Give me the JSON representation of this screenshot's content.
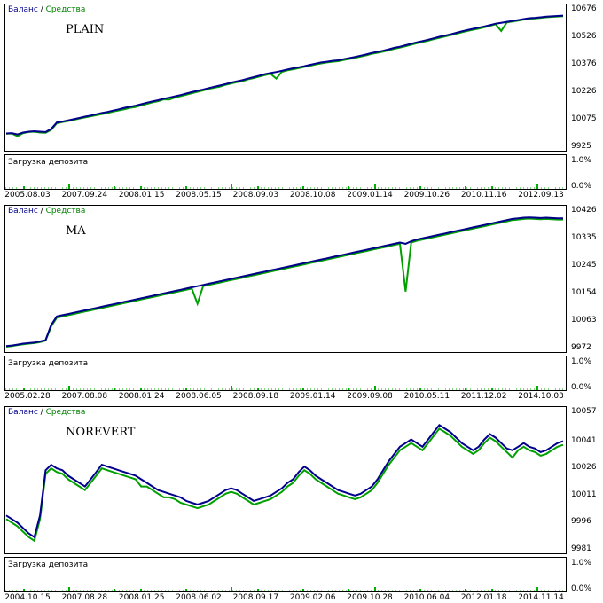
{
  "legend": {
    "balance": "Баланс",
    "separator": " / ",
    "equity": "Средства"
  },
  "colors": {
    "balance": "#00008b",
    "equity": "#00a000",
    "load": "#00b000",
    "axis": "#000000"
  },
  "load_panel": {
    "label": "Загрузка депозита",
    "ticks": [
      "1.0%",
      "0.0%"
    ]
  },
  "chart_data": [
    {
      "type": "line",
      "tag": "PLAIN",
      "ylim": [
        9925,
        10676
      ],
      "yticks": [
        "10676",
        "10526",
        "10376",
        "10226",
        "10075",
        "9925"
      ],
      "xticks": [
        "2005.08.03",
        "2007.09.24",
        "2008.01.15",
        "2008.05.15",
        "2008.09.03",
        "2008.10.08",
        "2009.01.14",
        "2009.10.26",
        "2010.11.16",
        "2012.09.13"
      ],
      "series": [
        {
          "name": "Баланс",
          "values": [
            10000,
            10002,
            9995,
            10005,
            10010,
            10012,
            10010,
            10008,
            10025,
            10060,
            10065,
            10072,
            10078,
            10085,
            10092,
            10098,
            10105,
            10112,
            10118,
            10125,
            10132,
            10140,
            10146,
            10152,
            10160,
            10168,
            10175,
            10182,
            10190,
            10196,
            10203,
            10210,
            10218,
            10226,
            10233,
            10240,
            10248,
            10255,
            10262,
            10270,
            10278,
            10285,
            10292,
            10300,
            10308,
            10316,
            10324,
            10330,
            10336,
            10342,
            10350,
            10356,
            10362,
            10368,
            10375,
            10382,
            10388,
            10392,
            10397,
            10400,
            10406,
            10412,
            10418,
            10425,
            10432,
            10440,
            10446,
            10452,
            10460,
            10468,
            10474,
            10482,
            10490,
            10498,
            10505,
            10512,
            10520,
            10528,
            10535,
            10542,
            10550,
            10558,
            10565,
            10572,
            10578,
            10585,
            10592,
            10600,
            10605,
            10610,
            10615,
            10620,
            10625,
            10630,
            10632,
            10635,
            10638,
            10640,
            10642,
            10644
          ]
        },
        {
          "name": "Средства",
          "values": [
            9998,
            10000,
            9985,
            10002,
            10008,
            10010,
            10005,
            10004,
            10020,
            10056,
            10062,
            10068,
            10074,
            10082,
            10088,
            10094,
            10100,
            10106,
            10112,
            10120,
            10126,
            10132,
            10140,
            10145,
            10154,
            10162,
            10170,
            10176,
            10186,
            10185,
            10197,
            10204,
            10212,
            10220,
            10228,
            10235,
            10244,
            10250,
            10256,
            10266,
            10273,
            10280,
            10286,
            10296,
            10303,
            10311,
            10319,
            10326,
            10300,
            10337,
            10345,
            10351,
            10357,
            10364,
            10370,
            10377,
            10383,
            10388,
            10392,
            10395,
            10402,
            10407,
            10413,
            10420,
            10427,
            10435,
            10441,
            10447,
            10455,
            10463,
            10469,
            10477,
            10485,
            10493,
            10500,
            10507,
            10515,
            10523,
            10530,
            10537,
            10545,
            10553,
            10560,
            10567,
            10573,
            10580,
            10588,
            10597,
            10560,
            10607,
            10612,
            10617,
            10622,
            10627,
            10629,
            10632,
            10635,
            10637,
            10639,
            10641
          ]
        }
      ]
    },
    {
      "type": "line",
      "tag": "MA",
      "ylim": [
        9972,
        10426
      ],
      "yticks": [
        "10426",
        "10335",
        "10245",
        "10154",
        "10063",
        "9972"
      ],
      "xticks": [
        "2005.02.28",
        "2007.08.08",
        "2008.01.24",
        "2008.06.05",
        "2008.09.18",
        "2009.01.14",
        "2009.09.08",
        "2010.05.11",
        "2011.12.02",
        "2014.10.03"
      ],
      "series": [
        {
          "name": "Баланс",
          "values": [
            9980,
            9982,
            9985,
            9988,
            9990,
            9992,
            9995,
            10000,
            10050,
            10078,
            10082,
            10086,
            10090,
            10094,
            10098,
            10102,
            10106,
            10110,
            10114,
            10118,
            10122,
            10126,
            10130,
            10134,
            10138,
            10142,
            10146,
            10150,
            10154,
            10158,
            10162,
            10166,
            10170,
            10174,
            10178,
            10182,
            10186,
            10190,
            10194,
            10198,
            10202,
            10206,
            10210,
            10214,
            10218,
            10222,
            10226,
            10230,
            10234,
            10238,
            10242,
            10246,
            10250,
            10254,
            10258,
            10262,
            10266,
            10270,
            10274,
            10278,
            10282,
            10286,
            10290,
            10294,
            10298,
            10302,
            10306,
            10310,
            10314,
            10318,
            10322,
            10318,
            10326,
            10332,
            10336,
            10340,
            10344,
            10348,
            10352,
            10356,
            10360,
            10364,
            10368,
            10372,
            10376,
            10380,
            10384,
            10388,
            10392,
            10396,
            10400,
            10402,
            10404,
            10405,
            10404,
            10403,
            10404,
            10403,
            10402,
            10402
          ]
        },
        {
          "name": "Средства",
          "values": [
            9978,
            9980,
            9983,
            9986,
            9988,
            9990,
            9993,
            9998,
            10045,
            10074,
            10078,
            10082,
            10086,
            10090,
            10094,
            10098,
            10102,
            10106,
            10110,
            10114,
            10118,
            10122,
            10126,
            10130,
            10134,
            10138,
            10142,
            10146,
            10150,
            10154,
            10158,
            10162,
            10166,
            10170,
            10120,
            10178,
            10182,
            10186,
            10190,
            10194,
            10198,
            10202,
            10206,
            10210,
            10214,
            10218,
            10222,
            10226,
            10230,
            10234,
            10238,
            10242,
            10246,
            10250,
            10254,
            10258,
            10262,
            10266,
            10270,
            10274,
            10278,
            10282,
            10286,
            10290,
            10294,
            10298,
            10302,
            10306,
            10310,
            10314,
            10318,
            10160,
            10322,
            10328,
            10332,
            10336,
            10340,
            10344,
            10348,
            10352,
            10356,
            10360,
            10364,
            10368,
            10372,
            10376,
            10380,
            10384,
            10388,
            10392,
            10396,
            10398,
            10400,
            10401,
            10400,
            10399,
            10400,
            10399,
            10398,
            10398
          ]
        }
      ]
    },
    {
      "type": "line",
      "tag": "NOREVERT",
      "ylim": [
        9981,
        10057
      ],
      "yticks": [
        "10057",
        "10041",
        "10026",
        "10011",
        "9996",
        "9981"
      ],
      "xticks": [
        "2004.10.15",
        "2007.08.28",
        "2008.01.25",
        "2008.06.02",
        "2008.09.17",
        "2009.02.06",
        "2009.10.28",
        "2010.06.04",
        "2012.01.18",
        "2014.11.14"
      ],
      "series": [
        {
          "name": "Баланс",
          "values": [
            10000,
            9998,
            9996,
            9993,
            9990,
            9988,
            10000,
            10025,
            10028,
            10026,
            10025,
            10022,
            10020,
            10018,
            10016,
            10020,
            10024,
            10028,
            10027,
            10026,
            10025,
            10024,
            10023,
            10022,
            10020,
            10018,
            10016,
            10014,
            10013,
            10012,
            10011,
            10010,
            10008,
            10007,
            10006,
            10007,
            10008,
            10010,
            10012,
            10014,
            10015,
            10014,
            10012,
            10010,
            10008,
            10009,
            10010,
            10011,
            10013,
            10015,
            10018,
            10020,
            10024,
            10027,
            10025,
            10022,
            10020,
            10018,
            10016,
            10014,
            10013,
            10012,
            10011,
            10012,
            10014,
            10016,
            10020,
            10025,
            10030,
            10034,
            10038,
            10040,
            10042,
            10040,
            10038,
            10042,
            10046,
            10050,
            10048,
            10046,
            10043,
            10040,
            10038,
            10036,
            10038,
            10042,
            10045,
            10043,
            10040,
            10037,
            10036,
            10038,
            10040,
            10038,
            10037,
            10035,
            10036,
            10038,
            10040,
            10041
          ]
        },
        {
          "name": "Средства",
          "values": [
            9998,
            9996,
            9994,
            9991,
            9988,
            9986,
            9998,
            10023,
            10026,
            10024,
            10023,
            10020,
            10018,
            10016,
            10014,
            10018,
            10022,
            10026,
            10025,
            10024,
            10023,
            10022,
            10021,
            10020,
            10016,
            10016,
            10014,
            10012,
            10010,
            10010,
            10009,
            10007,
            10006,
            10005,
            10004,
            10005,
            10006,
            10008,
            10010,
            10012,
            10013,
            10012,
            10010,
            10008,
            10006,
            10007,
            10008,
            10009,
            10011,
            10013,
            10016,
            10018,
            10022,
            10025,
            10023,
            10020,
            10018,
            10016,
            10014,
            10012,
            10011,
            10010,
            10009,
            10010,
            10012,
            10014,
            10018,
            10023,
            10028,
            10032,
            10036,
            10038,
            10040,
            10038,
            10036,
            10040,
            10044,
            10048,
            10046,
            10044,
            10041,
            10038,
            10036,
            10034,
            10036,
            10040,
            10043,
            10041,
            10038,
            10035,
            10032,
            10036,
            10038,
            10036,
            10035,
            10033,
            10034,
            10036,
            10038,
            10039
          ]
        }
      ]
    }
  ]
}
